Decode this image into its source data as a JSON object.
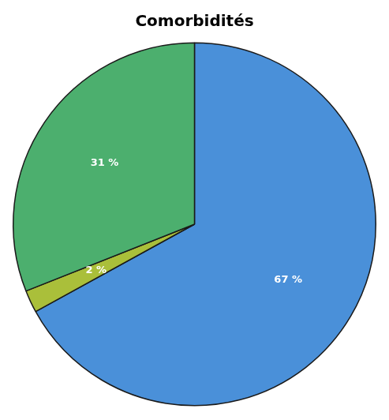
{
  "chart_data": {
    "type": "pie",
    "title": "Comorbidités",
    "values": [
      67,
      2,
      31
    ],
    "value_labels": [
      "67 %",
      "2 %",
      "31 %"
    ],
    "colors": [
      "#4A90D9",
      "#AABF3A",
      "#4CAF6E"
    ],
    "data_labels": true
  }
}
